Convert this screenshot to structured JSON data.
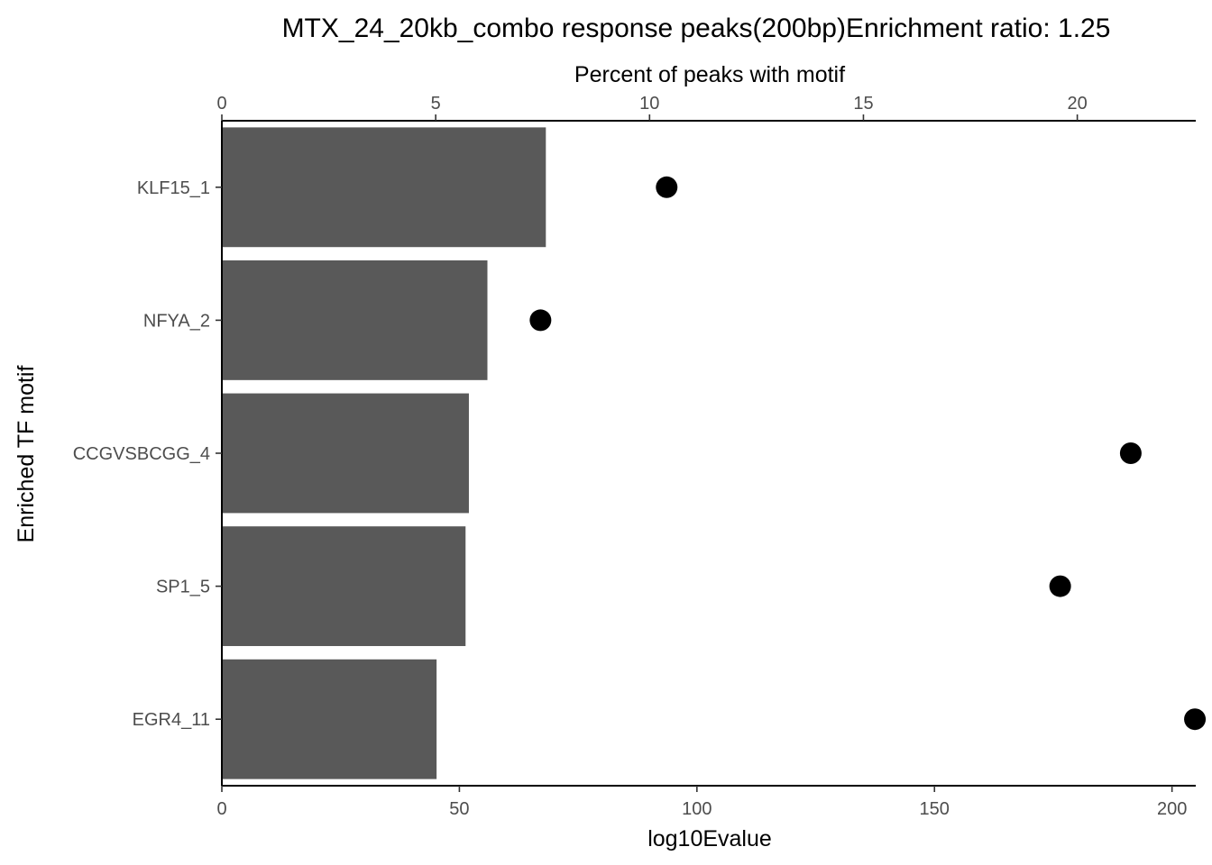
{
  "chart_data": {
    "type": "bar",
    "title": "MTX_24_20kb_combo response peaks(200bp)Enrichment ratio: 1.25",
    "xlabel": "log10Evalue",
    "x2label": "Percent of peaks with motif",
    "ylabel": "Enriched TF motif",
    "categories": [
      "KLF15_1",
      "NFYA_2",
      "CCGVSBCGG_4",
      "SP1_5",
      "EGR4_11"
    ],
    "series": [
      {
        "type": "bar",
        "axis": "bottom",
        "values": [
          68.2,
          55.9,
          52.0,
          51.3,
          45.2
        ],
        "color": "#595959"
      },
      {
        "type": "point",
        "axis": "top",
        "values": [
          10.4,
          7.45,
          21.25,
          19.6,
          22.75
        ],
        "color": "#000000"
      }
    ],
    "xlim": [
      0,
      205
    ],
    "x2lim": [
      0,
      22.77
    ],
    "xticks": [
      0,
      50,
      100,
      150,
      200
    ],
    "x2ticks": [
      0,
      5,
      10,
      15,
      20
    ],
    "grid": false,
    "legend": "none"
  }
}
